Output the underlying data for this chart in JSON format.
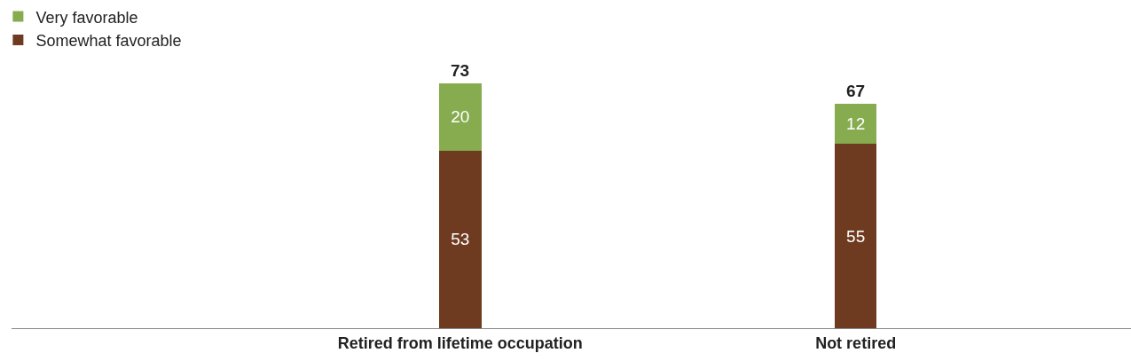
{
  "chart_data": {
    "type": "bar",
    "stacked": true,
    "categories": [
      "Retired from lifetime occupation",
      "Not retired"
    ],
    "series": [
      {
        "name": "Somewhat favorable",
        "color": "#6e3b20",
        "values": [
          53,
          55
        ]
      },
      {
        "name": "Very favorable",
        "color": "#86ac4f",
        "values": [
          20,
          12
        ]
      }
    ],
    "data_labels": true,
    "totals": [
      "73",
      "67"
    ],
    "legend": "top left"
  }
}
